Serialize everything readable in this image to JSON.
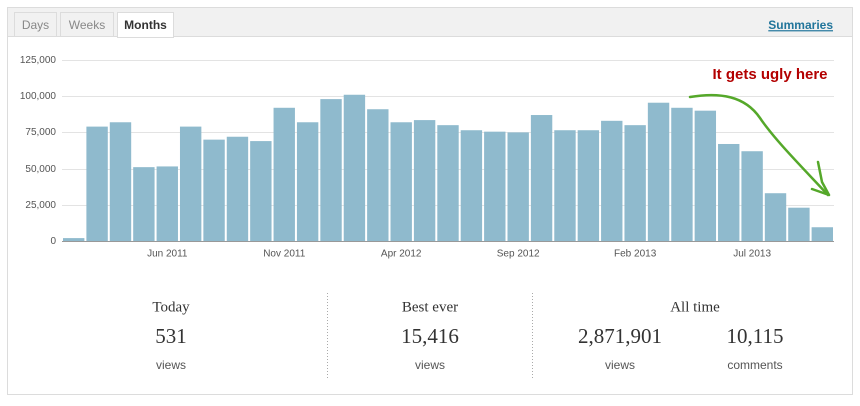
{
  "tabs": [
    "Days",
    "Weeks",
    "Months"
  ],
  "active_tab": "Months",
  "summaries_link": "Summaries",
  "chart_data": {
    "type": "bar",
    "annotation": "It gets ugly here",
    "annotation_color": "#b30000",
    "color": "#8fbacd",
    "categories": [
      null,
      null,
      null,
      null,
      "Jun 2011",
      null,
      null,
      null,
      null,
      "Nov 2011",
      null,
      null,
      null,
      null,
      "Apr 2012",
      null,
      null,
      null,
      null,
      "Sep 2012",
      null,
      null,
      null,
      null,
      "Feb 2013",
      null,
      null,
      null,
      null,
      "Jul 2013",
      null,
      null,
      null
    ],
    "values": [
      2000,
      79000,
      82000,
      51000,
      51500,
      79000,
      70000,
      72000,
      69000,
      92000,
      82000,
      98000,
      101000,
      91000,
      82000,
      83500,
      80000,
      76500,
      75500,
      75000,
      87000,
      76500,
      76500,
      83000,
      80000,
      95500,
      92000,
      90000,
      67000,
      62000,
      33000,
      23000,
      9500
    ],
    "ylim": [
      0,
      125000
    ],
    "yticks": [
      0,
      {
        "value": 25000,
        "label": "25,000"
      },
      {
        "value": 50000,
        "label": "50,000"
      },
      {
        "value": 75000,
        "label": "75,000"
      },
      {
        "value": 100000,
        "label": "100,000"
      },
      {
        "value": 125000,
        "label": "125,000"
      }
    ],
    "grid": true
  },
  "stats": [
    {
      "title": "Today",
      "items": [
        {
          "number": "531",
          "unit": "views"
        }
      ]
    },
    {
      "title": "Best ever",
      "items": [
        {
          "number": "15,416",
          "unit": "views"
        }
      ]
    },
    {
      "title": "All time",
      "items": [
        {
          "number": "2,871,901",
          "unit": "views"
        },
        {
          "number": "10,115",
          "unit": "comments"
        }
      ]
    }
  ]
}
